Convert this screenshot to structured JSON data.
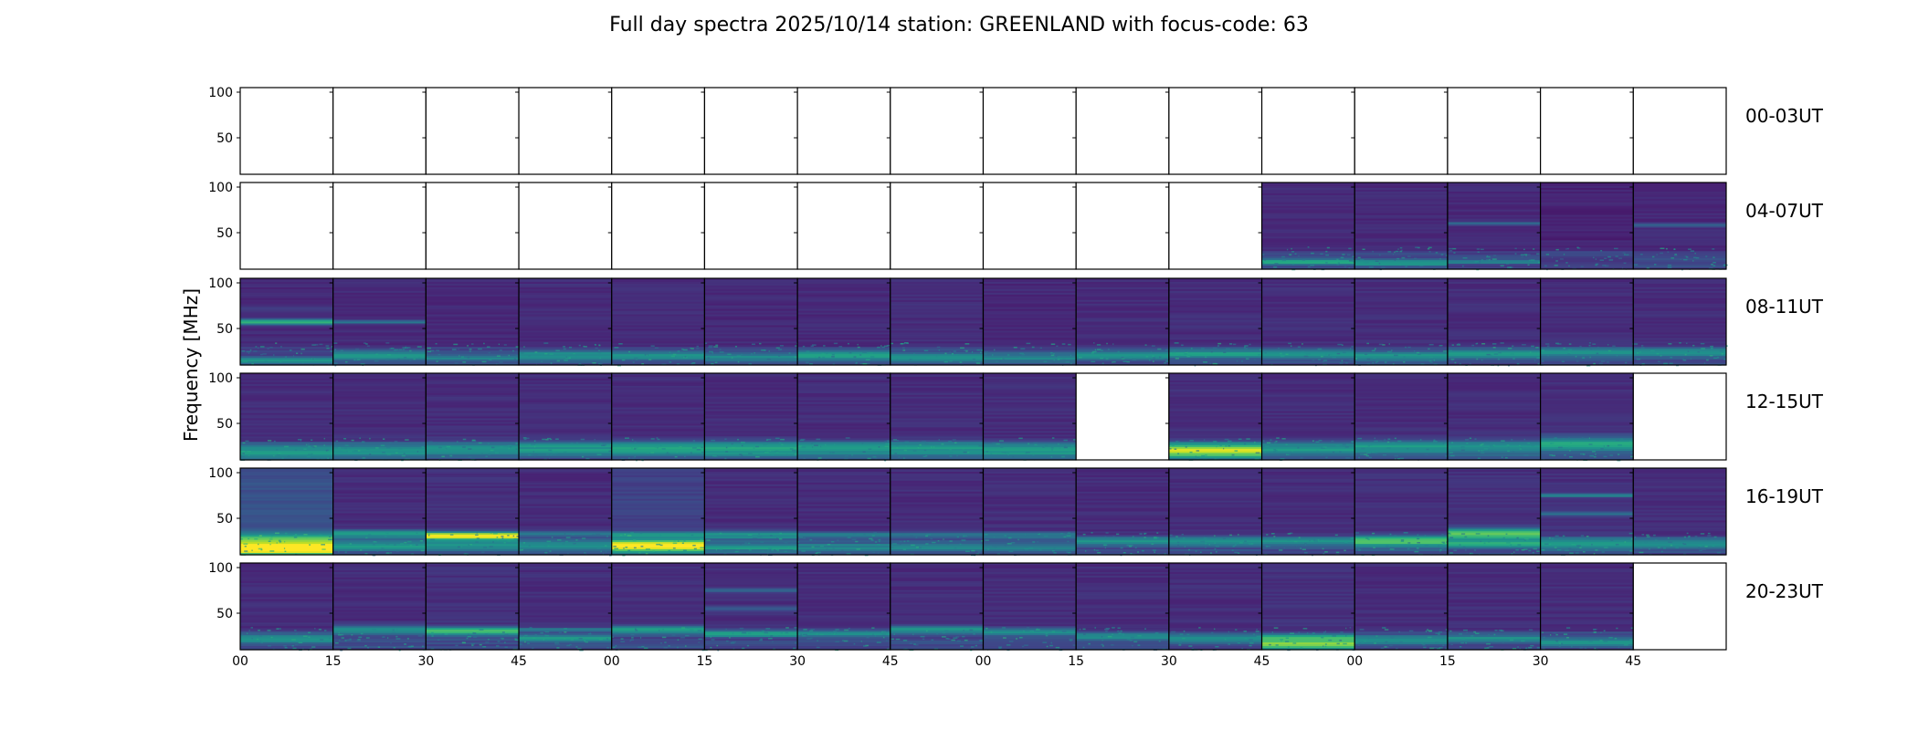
{
  "chart_data": {
    "type": "heatmap",
    "title": "Full day spectra 2025/10/14 station: GREENLAND with focus-code: 63",
    "ylabel": "Frequency [MHz]",
    "xlabel": "",
    "ylim": [
      10,
      105
    ],
    "yticks": [
      50,
      100
    ],
    "colormap": "viridis",
    "x_tick_labels": [
      "00",
      "15",
      "30",
      "45",
      "00",
      "15",
      "30",
      "45",
      "00",
      "15",
      "30",
      "45",
      "00",
      "15",
      "30",
      "45"
    ],
    "panel_minutes": 15,
    "rows": [
      {
        "label": "00-03UT",
        "panels": [
          0,
          0,
          0,
          0,
          0,
          0,
          0,
          0,
          0,
          0,
          0,
          0,
          0,
          0,
          0,
          0
        ]
      },
      {
        "label": "04-07UT",
        "panels": [
          0,
          0,
          0,
          0,
          0,
          0,
          0,
          0,
          0,
          0,
          0,
          {
            "bg": 0.12,
            "bands": [
              {
                "f": 18,
                "w": 3,
                "i": 0.45
              }
            ]
          },
          {
            "bg": 0.12,
            "bands": [
              {
                "f": 17,
                "w": 4,
                "i": 0.35
              }
            ]
          },
          {
            "bg": 0.12,
            "bands": [
              {
                "f": 18,
                "w": 2,
                "i": 0.3
              },
              {
                "f": 60,
                "w": 2,
                "i": 0.22
              }
            ]
          },
          {
            "bg": 0.1,
            "bands": []
          },
          {
            "bg": 0.12,
            "bands": [
              {
                "f": 58,
                "w": 2,
                "i": 0.2
              }
            ]
          }
        ]
      },
      {
        "label": "08-11UT",
        "panels": [
          {
            "bg": 0.12,
            "bands": [
              {
                "f": 15,
                "w": 3,
                "i": 0.35
              },
              {
                "f": 57,
                "w": 3,
                "i": 0.55
              },
              {
                "f": 70,
                "w": 4,
                "i": 0.05
              }
            ]
          },
          {
            "bg": 0.12,
            "bands": [
              {
                "f": 20,
                "w": 5,
                "i": 0.35
              },
              {
                "f": 57,
                "w": 2,
                "i": 0.3
              }
            ]
          },
          {
            "bg": 0.12,
            "bands": [
              {
                "f": 18,
                "w": 4,
                "i": 0.25
              }
            ]
          },
          {
            "bg": 0.13,
            "bands": [
              {
                "f": 20,
                "w": 5,
                "i": 0.3
              }
            ]
          },
          {
            "bg": 0.13,
            "bands": [
              {
                "f": 20,
                "w": 5,
                "i": 0.32
              }
            ]
          },
          {
            "bg": 0.12,
            "bands": [
              {
                "f": 18,
                "w": 5,
                "i": 0.25
              }
            ]
          },
          {
            "bg": 0.12,
            "bands": [
              {
                "f": 20,
                "w": 5,
                "i": 0.35
              }
            ]
          },
          {
            "bg": 0.13,
            "bands": [
              {
                "f": 18,
                "w": 5,
                "i": 0.32
              }
            ]
          },
          {
            "bg": 0.12,
            "bands": [
              {
                "f": 18,
                "w": 5,
                "i": 0.25
              }
            ]
          },
          {
            "bg": 0.13,
            "bands": [
              {
                "f": 20,
                "w": 5,
                "i": 0.28
              }
            ]
          },
          {
            "bg": 0.13,
            "bands": [
              {
                "f": 22,
                "w": 5,
                "i": 0.35
              }
            ]
          },
          {
            "bg": 0.13,
            "bands": [
              {
                "f": 22,
                "w": 5,
                "i": 0.3
              }
            ]
          },
          {
            "bg": 0.13,
            "bands": [
              {
                "f": 20,
                "w": 5,
                "i": 0.32
              }
            ]
          },
          {
            "bg": 0.13,
            "bands": [
              {
                "f": 22,
                "w": 5,
                "i": 0.32
              }
            ]
          },
          {
            "bg": 0.13,
            "bands": [
              {
                "f": 24,
                "w": 5,
                "i": 0.3
              }
            ]
          },
          {
            "bg": 0.13,
            "bands": [
              {
                "f": 24,
                "w": 5,
                "i": 0.3
              }
            ]
          }
        ]
      },
      {
        "label": "12-15UT",
        "panels": [
          {
            "bg": 0.13,
            "bands": [
              {
                "f": 18,
                "w": 8,
                "i": 0.35
              }
            ]
          },
          {
            "bg": 0.13,
            "bands": [
              {
                "f": 20,
                "w": 8,
                "i": 0.3
              }
            ]
          },
          {
            "bg": 0.13,
            "bands": [
              {
                "f": 22,
                "w": 8,
                "i": 0.3
              }
            ]
          },
          {
            "bg": 0.13,
            "bands": [
              {
                "f": 22,
                "w": 8,
                "i": 0.32
              }
            ]
          },
          {
            "bg": 0.13,
            "bands": [
              {
                "f": 22,
                "w": 8,
                "i": 0.38
              }
            ]
          },
          {
            "bg": 0.13,
            "bands": [
              {
                "f": 22,
                "w": 8,
                "i": 0.38
              }
            ]
          },
          {
            "bg": 0.13,
            "bands": [
              {
                "f": 22,
                "w": 8,
                "i": 0.35
              }
            ]
          },
          {
            "bg": 0.13,
            "bands": [
              {
                "f": 22,
                "w": 8,
                "i": 0.32
              }
            ]
          },
          {
            "bg": 0.13,
            "bands": [
              {
                "f": 20,
                "w": 8,
                "i": 0.35
              }
            ]
          },
          0,
          {
            "bg": 0.14,
            "bands": [
              {
                "f": 20,
                "w": 8,
                "i": 0.7
              }
            ]
          },
          {
            "bg": 0.13,
            "bands": [
              {
                "f": 22,
                "w": 8,
                "i": 0.32
              }
            ]
          },
          {
            "bg": 0.13,
            "bands": [
              {
                "f": 24,
                "w": 8,
                "i": 0.32
              }
            ]
          },
          {
            "bg": 0.13,
            "bands": [
              {
                "f": 24,
                "w": 8,
                "i": 0.3
              }
            ]
          },
          {
            "bg": 0.13,
            "bands": [
              {
                "f": 28,
                "w": 8,
                "i": 0.4
              }
            ]
          },
          0
        ]
      },
      {
        "label": "16-19UT",
        "panels": [
          {
            "bg": 0.25,
            "bands": [
              {
                "f": 17,
                "w": 6,
                "i": 0.95
              },
              {
                "f": 28,
                "w": 6,
                "i": 0.4
              }
            ]
          },
          {
            "bg": 0.13,
            "bands": [
              {
                "f": 33,
                "w": 4,
                "i": 0.45
              },
              {
                "f": 20,
                "w": 6,
                "i": 0.3
              }
            ]
          },
          {
            "bg": 0.14,
            "bands": [
              {
                "f": 31,
                "w": 4,
                "i": 0.85
              },
              {
                "f": 20,
                "w": 6,
                "i": 0.3
              }
            ]
          },
          {
            "bg": 0.13,
            "bands": [
              {
                "f": 33,
                "w": 3,
                "i": 0.3
              },
              {
                "f": 20,
                "w": 6,
                "i": 0.3
              }
            ]
          },
          {
            "bg": 0.2,
            "bands": [
              {
                "f": 20,
                "w": 6,
                "i": 0.85
              },
              {
                "f": 32,
                "w": 3,
                "i": 0.35
              }
            ]
          },
          {
            "bg": 0.13,
            "bands": [
              {
                "f": 32,
                "w": 4,
                "i": 0.4
              },
              {
                "f": 18,
                "w": 5,
                "i": 0.3
              }
            ]
          },
          {
            "bg": 0.13,
            "bands": [
              {
                "f": 32,
                "w": 3,
                "i": 0.3
              },
              {
                "f": 18,
                "w": 5,
                "i": 0.25
              }
            ]
          },
          {
            "bg": 0.13,
            "bands": [
              {
                "f": 32,
                "w": 3,
                "i": 0.3
              },
              {
                "f": 18,
                "w": 5,
                "i": 0.25
              }
            ]
          },
          {
            "bg": 0.13,
            "bands": [
              {
                "f": 32,
                "w": 3,
                "i": 0.3
              },
              {
                "f": 18,
                "w": 5,
                "i": 0.25
              }
            ]
          },
          {
            "bg": 0.13,
            "bands": [
              {
                "f": 25,
                "w": 5,
                "i": 0.3
              }
            ]
          },
          {
            "bg": 0.13,
            "bands": [
              {
                "f": 25,
                "w": 5,
                "i": 0.3
              }
            ]
          },
          {
            "bg": 0.13,
            "bands": [
              {
                "f": 25,
                "w": 5,
                "i": 0.3
              }
            ]
          },
          {
            "bg": 0.14,
            "bands": [
              {
                "f": 25,
                "w": 6,
                "i": 0.5
              }
            ]
          },
          {
            "bg": 0.14,
            "bands": [
              {
                "f": 33,
                "w": 6,
                "i": 0.6
              },
              {
                "f": 22,
                "w": 4,
                "i": 0.4
              }
            ]
          },
          {
            "bg": 0.14,
            "bands": [
              {
                "f": 75,
                "w": 2,
                "i": 0.35
              },
              {
                "f": 55,
                "w": 2,
                "i": 0.25
              },
              {
                "f": 22,
                "w": 6,
                "i": 0.35
              }
            ]
          },
          {
            "bg": 0.13,
            "bands": [
              {
                "f": 22,
                "w": 5,
                "i": 0.3
              }
            ]
          }
        ]
      },
      {
        "label": "20-23UT",
        "panels": [
          {
            "bg": 0.13,
            "bands": [
              {
                "f": 22,
                "w": 5,
                "i": 0.32
              }
            ]
          },
          {
            "bg": 0.13,
            "bands": [
              {
                "f": 32,
                "w": 4,
                "i": 0.4
              }
            ]
          },
          {
            "bg": 0.14,
            "bands": [
              {
                "f": 31,
                "w": 4,
                "i": 0.55
              }
            ]
          },
          {
            "bg": 0.13,
            "bands": [
              {
                "f": 32,
                "w": 2,
                "i": 0.3
              },
              {
                "f": 22,
                "w": 4,
                "i": 0.3
              }
            ]
          },
          {
            "bg": 0.13,
            "bands": [
              {
                "f": 32,
                "w": 4,
                "i": 0.45
              }
            ]
          },
          {
            "bg": 0.13,
            "bands": [
              {
                "f": 75,
                "w": 2,
                "i": 0.2
              },
              {
                "f": 55,
                "w": 2,
                "i": 0.2
              },
              {
                "f": 28,
                "w": 4,
                "i": 0.35
              }
            ]
          },
          {
            "bg": 0.13,
            "bands": [
              {
                "f": 28,
                "w": 4,
                "i": 0.3
              }
            ]
          },
          {
            "bg": 0.13,
            "bands": [
              {
                "f": 32,
                "w": 4,
                "i": 0.4
              }
            ]
          },
          {
            "bg": 0.13,
            "bands": [
              {
                "f": 30,
                "w": 4,
                "i": 0.3
              }
            ]
          },
          {
            "bg": 0.13,
            "bands": [
              {
                "f": 25,
                "w": 4,
                "i": 0.28
              }
            ]
          },
          {
            "bg": 0.13,
            "bands": [
              {
                "f": 22,
                "w": 4,
                "i": 0.28
              }
            ]
          },
          {
            "bg": 0.14,
            "bands": [
              {
                "f": 16,
                "w": 6,
                "i": 0.6
              },
              {
                "f": 24,
                "w": 3,
                "i": 0.35
              }
            ]
          },
          {
            "bg": 0.13,
            "bands": [
              {
                "f": 20,
                "w": 5,
                "i": 0.3
              }
            ]
          },
          {
            "bg": 0.13,
            "bands": [
              {
                "f": 22,
                "w": 4,
                "i": 0.28
              }
            ]
          },
          {
            "bg": 0.13,
            "bands": [
              {
                "f": 18,
                "w": 4,
                "i": 0.35
              }
            ]
          },
          0
        ]
      }
    ]
  }
}
